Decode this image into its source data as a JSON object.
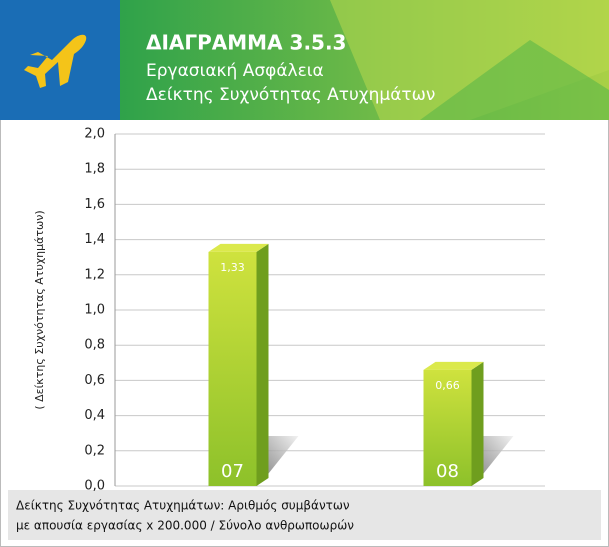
{
  "chart_data": {
    "type": "bar",
    "title": "ΔΙΑΓΡΑΜΜΑ 3.5.3",
    "subtitle": [
      "Εργασιακή Ασφάλεια",
      "Δείκτης Συχνότητας Ατυχημάτων"
    ],
    "y_label": "( Δείκτης Συχνότητας Ατυχημάτων)",
    "categories": [
      "07",
      "08"
    ],
    "values": [
      1.33,
      0.66
    ],
    "value_labels": [
      "1,33",
      "0,66"
    ],
    "color": "#a6cc2e",
    "ylim": [
      0,
      2
    ],
    "yticks": [
      {
        "value": 0,
        "label": "0,0"
      },
      {
        "value": 0.2,
        "label": "0,2"
      },
      {
        "value": 0.4,
        "label": "0,4"
      },
      {
        "value": 0.6,
        "label": "0,6"
      },
      {
        "value": 0.8,
        "label": "0,8"
      },
      {
        "value": 1,
        "label": "1,0"
      },
      {
        "value": 1.2,
        "label": "1,2"
      },
      {
        "value": 1.4,
        "label": "1,4"
      },
      {
        "value": 1.6,
        "label": "1,6"
      },
      {
        "value": 1.8,
        "label": "1,8"
      },
      {
        "value": 2,
        "label": "2,0"
      }
    ],
    "grid": true,
    "footnote": [
      "Δείκτης Συχνότητας Ατυχημάτων: Αριθμός συμβάντων",
      "με απουσία εργασίας x 200.000 / Σύνολο ανθρωποωρών"
    ]
  }
}
